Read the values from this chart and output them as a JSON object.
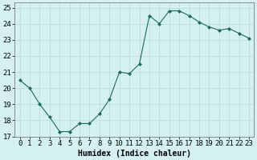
{
  "x": [
    0,
    1,
    2,
    3,
    4,
    5,
    6,
    7,
    8,
    9,
    10,
    11,
    12,
    13,
    14,
    15,
    16,
    17,
    18,
    19,
    20,
    21,
    22,
    23
  ],
  "y": [
    20.5,
    20.0,
    19.0,
    18.2,
    17.3,
    17.3,
    17.8,
    17.8,
    18.4,
    19.3,
    21.0,
    20.9,
    21.5,
    24.5,
    24.0,
    24.8,
    24.8,
    24.5,
    24.1,
    23.8,
    23.6,
    23.7,
    23.4,
    23.1
  ],
  "line_color": "#1a6b5a",
  "marker": "D",
  "marker_size": 2.0,
  "bg_color": "#d4f0f0",
  "grid_color": "#b8d8d8",
  "xlabel": "Humidex (Indice chaleur)",
  "xlim": [
    -0.5,
    23.5
  ],
  "ylim": [
    17,
    25.3
  ],
  "yticks": [
    17,
    18,
    19,
    20,
    21,
    22,
    23,
    24,
    25
  ],
  "xticks": [
    0,
    1,
    2,
    3,
    4,
    5,
    6,
    7,
    8,
    9,
    10,
    11,
    12,
    13,
    14,
    15,
    16,
    17,
    18,
    19,
    20,
    21,
    22,
    23
  ],
  "label_fontsize": 7,
  "tick_fontsize": 6.5
}
